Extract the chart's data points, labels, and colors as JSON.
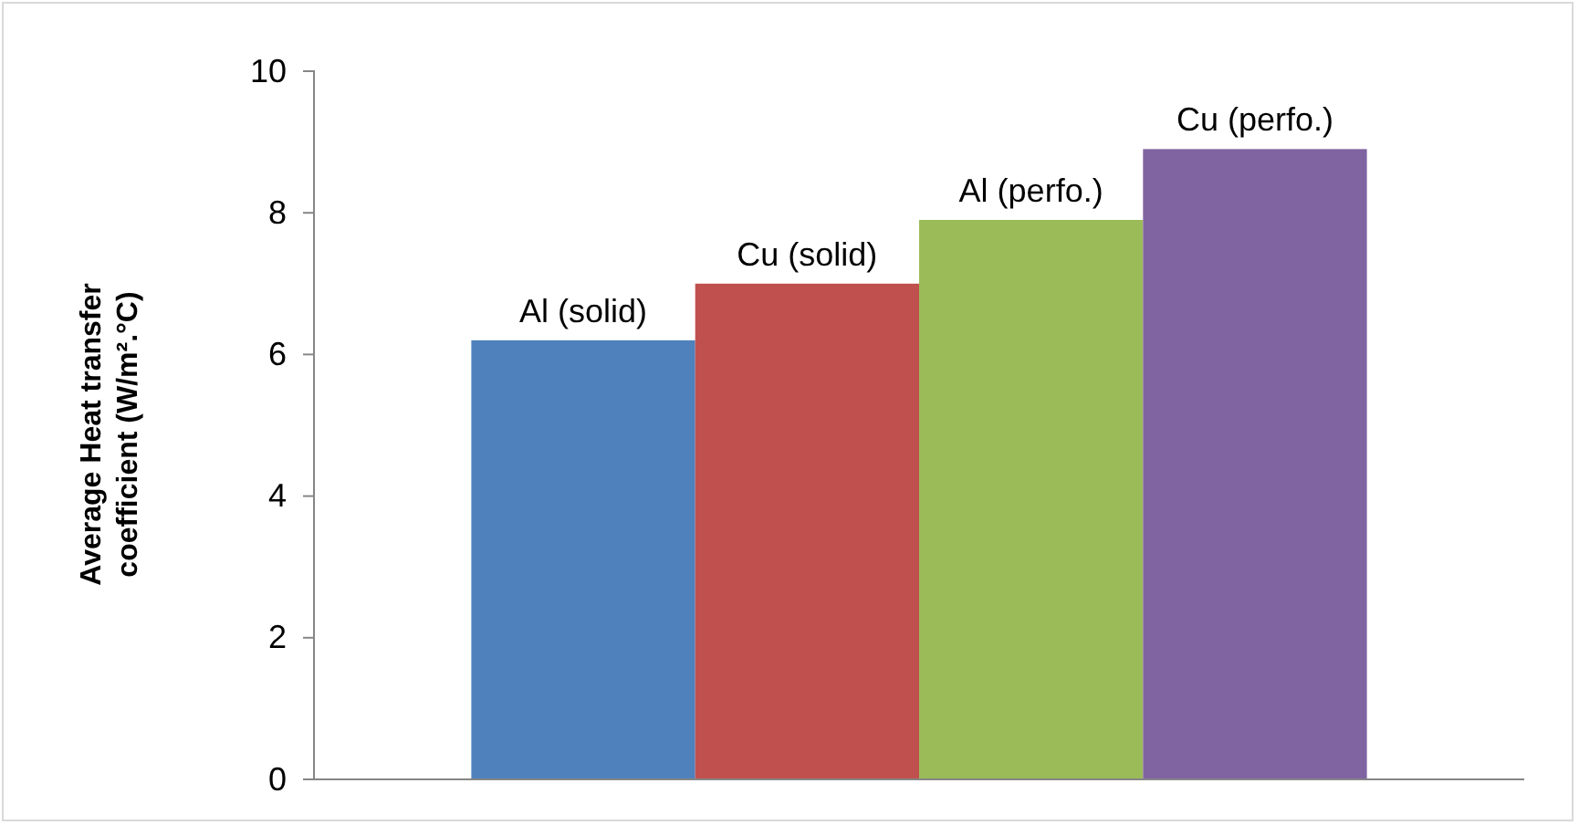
{
  "chart_data": {
    "type": "bar",
    "categories": [
      null
    ],
    "series": [
      {
        "name": "Al (solid)",
        "color": "#4f81bd",
        "values": [
          6.2
        ]
      },
      {
        "name": "Cu (solid)",
        "color": "#c0504d",
        "values": [
          7.0
        ]
      },
      {
        "name": "Al (perfo.)",
        "color": "#9bbb59",
        "values": [
          7.9
        ]
      },
      {
        "name": "Cu (perfo.)",
        "color": "#8064a2",
        "values": [
          8.9
        ]
      }
    ],
    "ylabel": "Average Heat transfer coefficient (W/m².°C)",
    "ylim": [
      0,
      10
    ],
    "yticks": [
      0,
      2,
      4,
      6,
      8,
      10
    ],
    "grid": false,
    "legend": false
  }
}
